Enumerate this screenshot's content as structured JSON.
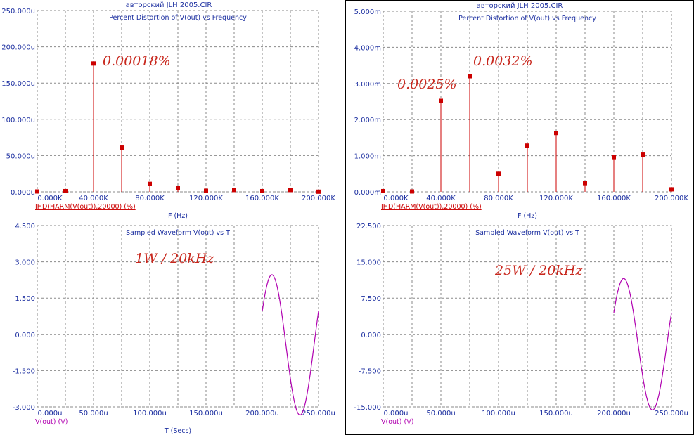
{
  "colors": {
    "grid": "#8a8a8a",
    "axis_text": "#1c2fa0",
    "harmonic": "#cc0000",
    "waveform": "#b000b0",
    "annotation": "#c8281e"
  },
  "panels": [
    {
      "file_title": "авторский JLH 2005.CIR",
      "top_plot": {
        "title": "Percent Distortion of V(out) vs Frequency",
        "y_ticks": [
          "250.000u",
          "200.000u",
          "150.000u",
          "100.000u",
          "50.000u",
          "0.000u"
        ],
        "x_ticks": [
          "0.000K",
          "40.000K",
          "80.000K",
          "120.000K",
          "160.000K",
          "200.000K"
        ],
        "legend": "IHD(HARM(V(out)),20000) (%)",
        "xlabel": "F (Hz)"
      },
      "bottom_plot": {
        "title": "Sampled Waveform  V(out) vs T",
        "y_ticks": [
          "4.500",
          "3.000",
          "1.500",
          "0.000",
          "-1.500",
          "-3.000"
        ],
        "x_ticks": [
          "0.000u",
          "50.000u",
          "100.000u",
          "150.000u",
          "200.000u",
          "250.000u"
        ],
        "legend": "V(out) (V)",
        "xlabel": "T (Secs)"
      },
      "annotations": [
        "0.00018%",
        "1W / 20kHz"
      ]
    },
    {
      "file_title": "авторский JLH 2005.CIR",
      "top_plot": {
        "title": "Percent Distortion of V(out) vs Frequency",
        "y_ticks": [
          "5.000m",
          "4.000m",
          "3.000m",
          "2.000m",
          "1.000m",
          "0.000m"
        ],
        "x_ticks": [
          "0.000K",
          "40.000K",
          "80.000K",
          "120.000K",
          "160.000K",
          "200.000K"
        ],
        "legend": "IHD(HARM(V(out)),20000) (%)",
        "xlabel": "F (Hz)"
      },
      "bottom_plot": {
        "title": "Sampled Waveform  V(out) vs T",
        "y_ticks": [
          "22.500",
          "15.000",
          "7.500",
          "0.000",
          "-7.500",
          "-15.000"
        ],
        "x_ticks": [
          "0.000u",
          "50.000u",
          "100.000u",
          "150.000u",
          "200.000u",
          "250.000u"
        ],
        "legend": "V(out) (V)",
        "xlabel": ""
      },
      "annotations": [
        "0.0025%",
        "0.0032%",
        "25W / 20kHz"
      ]
    }
  ],
  "chart_data": [
    {
      "type": "bar",
      "title": "Percent Distortion of V(out) vs Frequency",
      "xlabel": "F (Hz)",
      "series": [
        {
          "name": "IHD(HARM(V(out)),20000) (%)",
          "x": [
            0,
            20000,
            40000,
            60000,
            80000,
            100000,
            120000,
            140000,
            160000,
            180000,
            200000
          ],
          "values": [
            5e-07,
            1e-06,
            0.000177,
            6.1e-05,
            1.1e-05,
            5e-06,
            1.5e-06,
            2.5e-06,
            1e-06,
            2.5e-06,
            2e-07
          ]
        }
      ],
      "xlim": [
        0,
        200000
      ],
      "ylim": [
        0,
        0.00025
      ],
      "grid": true
    },
    {
      "type": "line",
      "title": "Sampled Waveform  V(out) vs T",
      "series": [
        {
          "name": "V(out) (V)",
          "x_range": [
            0.0002,
            0.00025
          ],
          "amplitude": 2.9,
          "frequency_hz": 20000
        }
      ],
      "xlim": [
        0,
        0.00025
      ],
      "ylim": [
        -3,
        4.5
      ],
      "grid": true
    },
    {
      "type": "bar",
      "title": "Percent Distortion of V(out) vs Frequency",
      "xlabel": "F (Hz)",
      "series": [
        {
          "name": "IHD(HARM(V(out)),20000) (%)",
          "x": [
            0,
            20000,
            40000,
            60000,
            80000,
            100000,
            120000,
            140000,
            160000,
            180000,
            200000
          ],
          "values": [
            2e-05,
            1e-05,
            0.00252,
            0.0032,
            0.0005,
            0.00128,
            0.00163,
            0.00024,
            0.00096,
            0.00103,
            7e-05
          ]
        }
      ],
      "xlim": [
        0,
        200000
      ],
      "ylim": [
        0,
        0.005
      ],
      "grid": true
    },
    {
      "type": "line",
      "title": "Sampled Waveform  V(out) vs T",
      "series": [
        {
          "name": "V(out) (V)",
          "x_range": [
            0.0002,
            0.00025
          ],
          "amplitude": 13.6,
          "frequency_hz": 20000
        }
      ],
      "xlim": [
        0,
        0.00025
      ],
      "ylim": [
        -15,
        22.5
      ],
      "grid": true
    }
  ]
}
